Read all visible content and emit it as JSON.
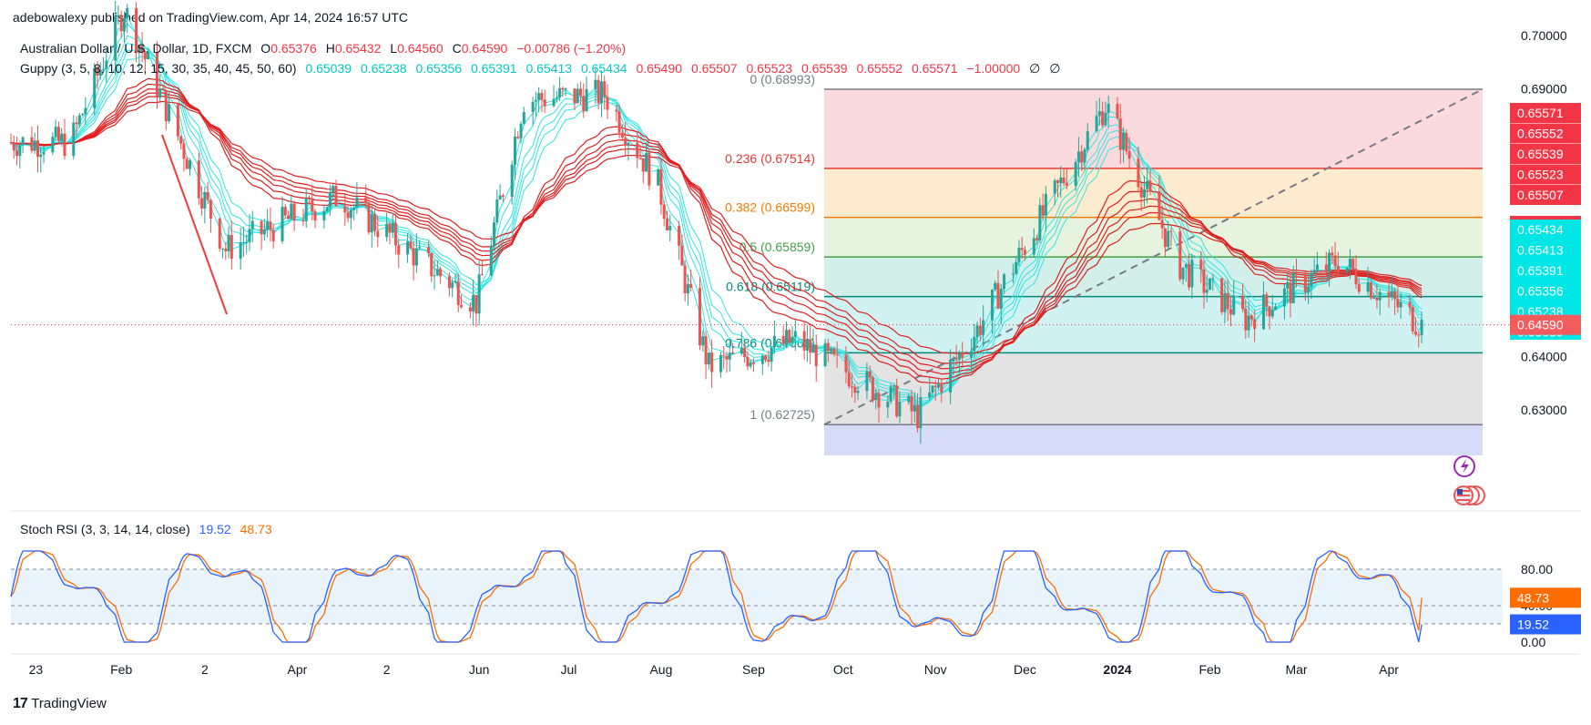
{
  "publisher": "adebowalexy published on TradingView.com, Apr 14, 2024 16:57 UTC",
  "brand": "TradingView",
  "colors": {
    "up": "#26a69a",
    "down": "#ef5350",
    "guppy_fast": "#2ee6e6",
    "guppy_slow": "#e02020",
    "stoch_k": "#2962ff",
    "stoch_d": "#ff6d00",
    "price_label": "#f23645",
    "fast_label": "#00e5e5"
  },
  "legend": {
    "symbol": "Australian Dollar / U.S. Dollar, 1D, FXCM",
    "o_label": "O",
    "o_value": "0.65376",
    "h_label": "H",
    "h_value": "0.65432",
    "l_label": "L",
    "l_value": "0.64560",
    "c_label": "C",
    "c_value": "0.64590",
    "change": "−0.00786 (−1.20%)",
    "guppy_label": "Guppy (3, 5, 8, 10, 12, 15, 30, 35, 40, 45, 50, 60)",
    "guppy_fast_values": [
      "0.65039",
      "0.65238",
      "0.65356",
      "0.65391",
      "0.65413",
      "0.65434"
    ],
    "guppy_slow_values": [
      "0.65490",
      "0.65507",
      "0.65523",
      "0.65539",
      "0.65552",
      "0.65571"
    ],
    "guppy_extra": [
      "−1.00000",
      "∅",
      "∅"
    ]
  },
  "stoch": {
    "label": "Stoch RSI (3, 3, 14, 14, close)",
    "k_value": "19.52",
    "d_value": "48.73",
    "ticks": [
      "80.00",
      "40.00",
      "0.00"
    ]
  },
  "chart_data": {
    "type": "candlestick",
    "instrument": "AUD/USD",
    "timeframe": "1D",
    "x_labels": [
      "23",
      "Feb",
      "2",
      "Apr",
      "2",
      "Jun",
      "Jul",
      "Aug",
      "Sep",
      "Oct",
      "Nov",
      "Dec",
      "2024",
      "Feb",
      "Mar",
      "Apr"
    ],
    "y_ticks": [
      "0.70000",
      "0.69000",
      "0.64000",
      "0.63000"
    ],
    "ylim": [
      0.6215,
      0.7015
    ],
    "last_price": "0.64590",
    "fast_ema_labels": [
      "0.65434",
      "0.65413",
      "0.65391",
      "0.65356",
      "0.65238",
      "0.65039"
    ],
    "slow_ema_labels": [
      "0.65571",
      "0.65552",
      "0.65539",
      "0.65523",
      "0.65507",
      "0.65490"
    ],
    "fibonacci": {
      "levels": [
        {
          "label": "0 (0.68993)",
          "price": 0.68993
        },
        {
          "label": "0.236 (0.67514)",
          "price": 0.67514
        },
        {
          "label": "0.382 (0.66599)",
          "price": 0.66599
        },
        {
          "label": "0.5 (0.65859)",
          "price": 0.65859
        },
        {
          "label": "0.618 (0.65119)",
          "price": 0.65119
        },
        {
          "label": "0.786 (0.64066)",
          "price": 0.64066
        },
        {
          "label": "1 (0.62725)",
          "price": 0.62725
        }
      ]
    },
    "approx_close_path": [
      {
        "date": "2023-01",
        "price": 0.68
      },
      {
        "date": "2023-02-02",
        "price": 0.705
      },
      {
        "date": "2023-03-08",
        "price": 0.66
      },
      {
        "date": "2023-04",
        "price": 0.67
      },
      {
        "date": "2023-05-31",
        "price": 0.65
      },
      {
        "date": "2023-06-16",
        "price": 0.688
      },
      {
        "date": "2023-07-13",
        "price": 0.689
      },
      {
        "date": "2023-07-31",
        "price": 0.672
      },
      {
        "date": "2023-08-17",
        "price": 0.638
      },
      {
        "date": "2023-09",
        "price": 0.643
      },
      {
        "date": "2023-10-26",
        "price": 0.629
      },
      {
        "date": "2023-11-15",
        "price": 0.645
      },
      {
        "date": "2023-12-28",
        "price": 0.687
      },
      {
        "date": "2024-01-22",
        "price": 0.657
      },
      {
        "date": "2024-02-13",
        "price": 0.647
      },
      {
        "date": "2024-03",
        "price": 0.658
      },
      {
        "date": "2024-04-12",
        "price": 0.6459
      }
    ],
    "stoch_rsi": {
      "k_last": 19.52,
      "d_last": 48.73,
      "ylim": [
        0,
        100
      ],
      "bands": [
        80,
        40,
        20
      ]
    }
  }
}
